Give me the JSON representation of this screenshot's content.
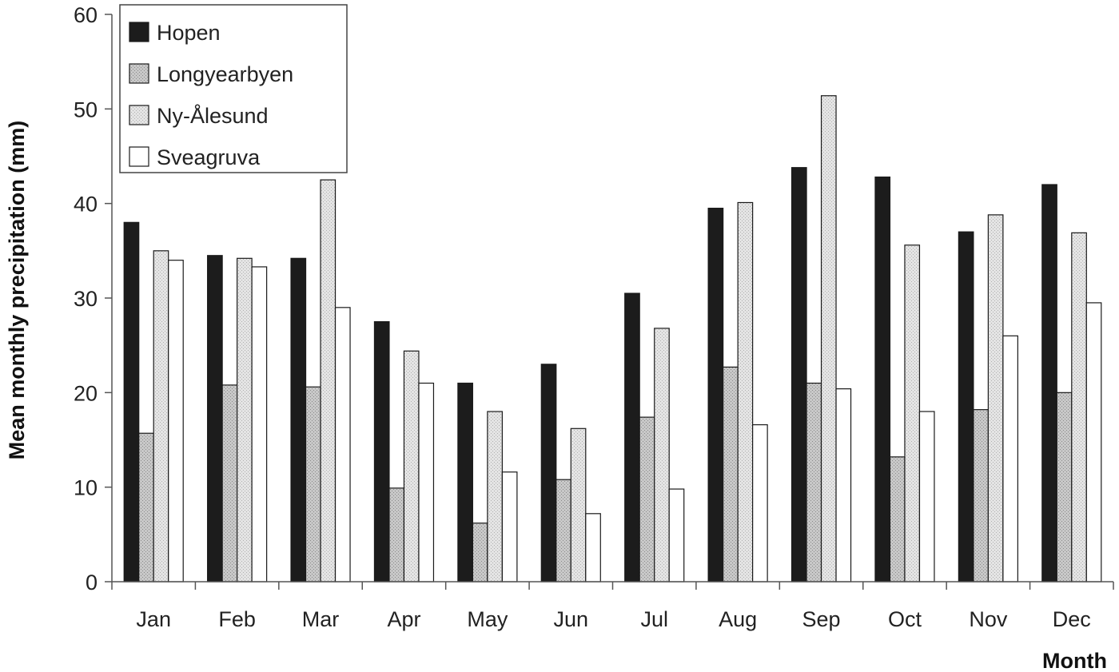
{
  "chart_data": {
    "type": "bar",
    "xlabel": "Month",
    "ylabel": "Mean monthly precipitation (mm)",
    "ylim": [
      0,
      60
    ],
    "yticks": [
      0,
      10,
      20,
      30,
      40,
      50,
      60
    ],
    "grid": false,
    "legend_position": "top-left",
    "categories": [
      "Jan",
      "Feb",
      "Mar",
      "Apr",
      "May",
      "Jun",
      "Jul",
      "Aug",
      "Sep",
      "Oct",
      "Nov",
      "Dec"
    ],
    "series": [
      {
        "name": "Hopen",
        "color": "#1c1c1c",
        "pattern": "solid",
        "values": [
          38,
          34.5,
          34.2,
          27.5,
          21,
          23,
          30.5,
          39.5,
          43.8,
          42.8,
          37,
          42
        ]
      },
      {
        "name": "Longyearbyen",
        "color": "#c4c4c4",
        "pattern": "dotted",
        "values": [
          15.7,
          20.8,
          20.6,
          9.9,
          6.2,
          10.8,
          17.4,
          22.7,
          21,
          13.2,
          18.2,
          20
        ]
      },
      {
        "name": "Ny-Ålesund",
        "color": "#e2e2e2",
        "pattern": "dotted-light",
        "values": [
          35,
          34.2,
          42.5,
          24.4,
          18,
          16.2,
          26.8,
          40.1,
          51.4,
          35.6,
          38.8,
          36.9
        ]
      },
      {
        "name": "Sveagruva",
        "color": "#ffffff",
        "pattern": "white",
        "values": [
          34,
          33.3,
          29,
          21,
          11.6,
          7.2,
          9.8,
          16.6,
          20.4,
          18,
          26,
          29.5
        ]
      }
    ]
  }
}
